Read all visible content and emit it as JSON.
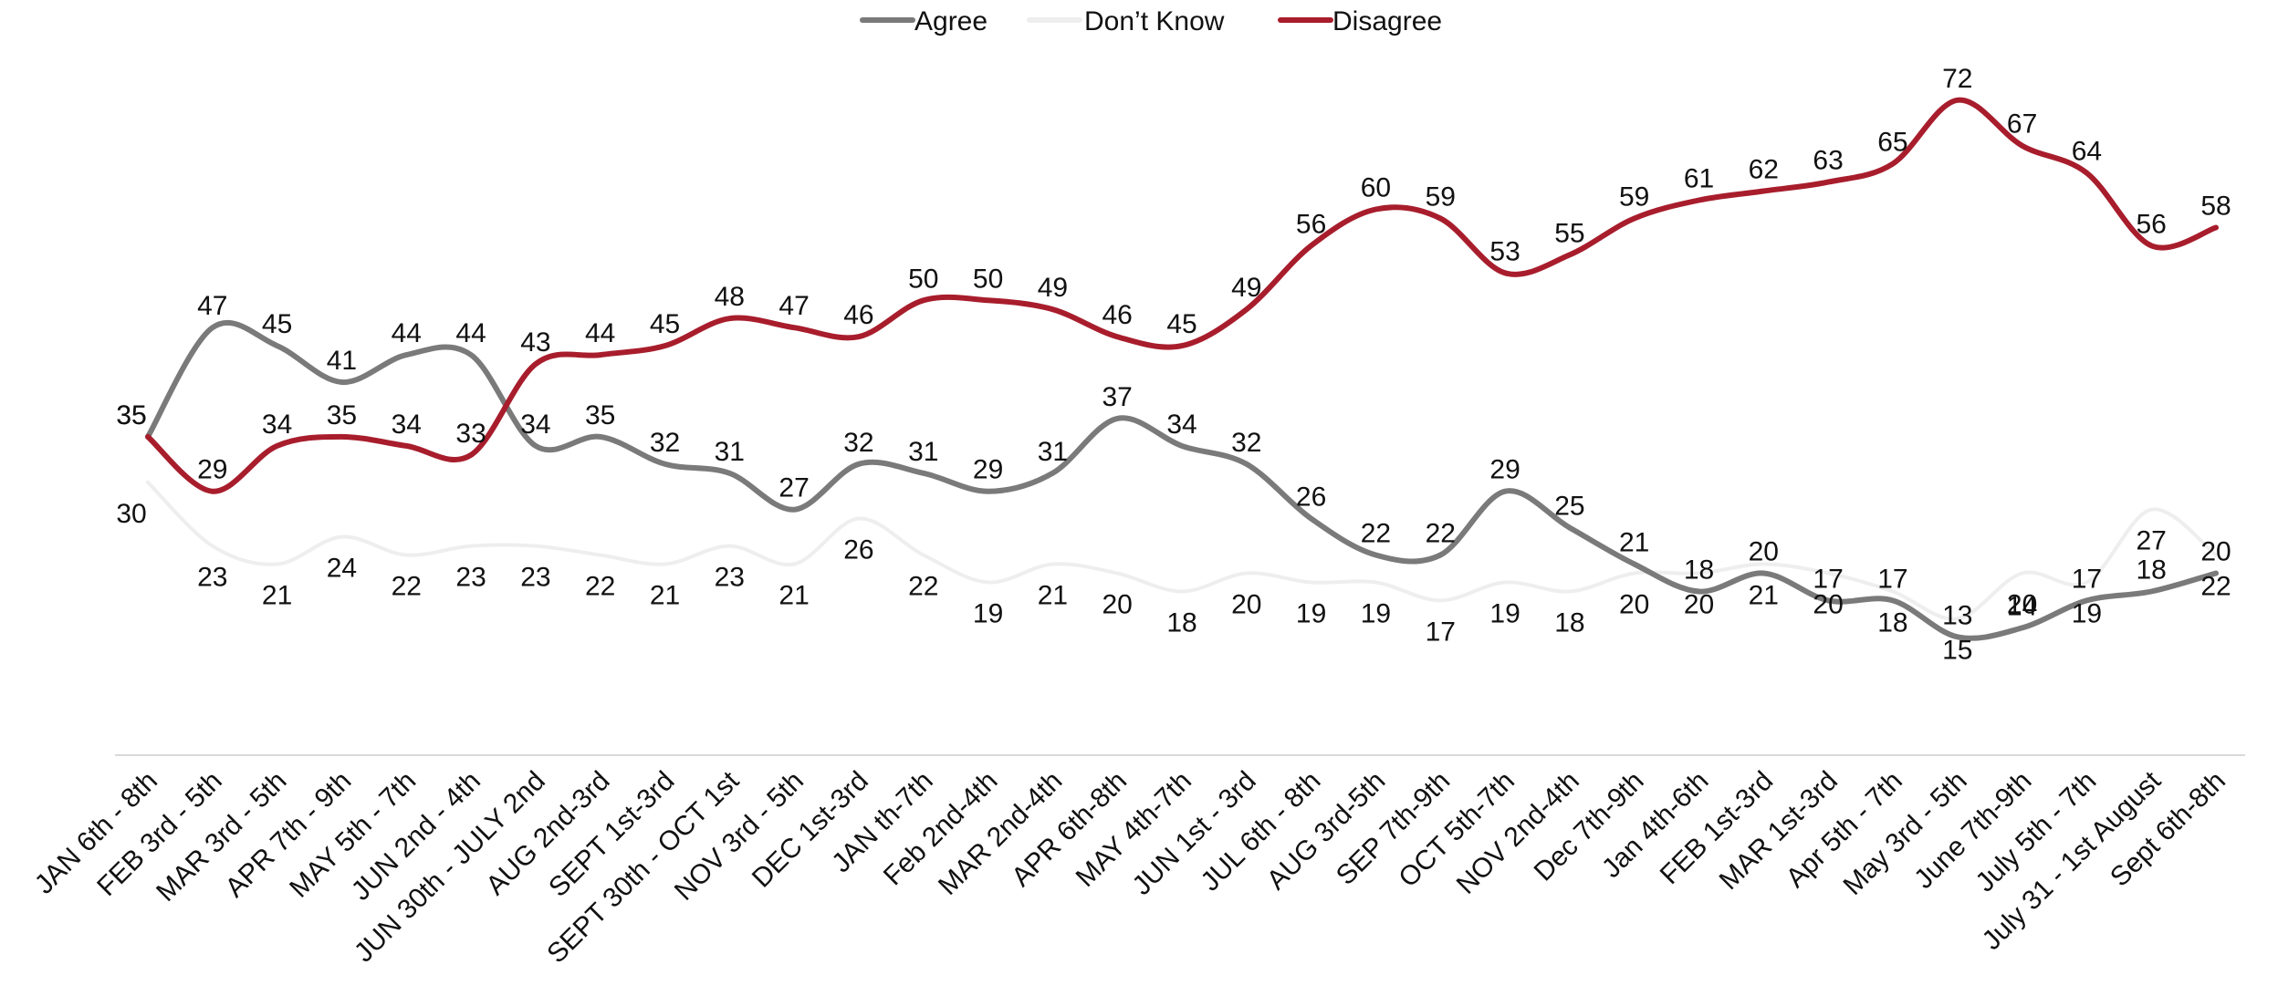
{
  "chart_data": {
    "type": "line",
    "title": "",
    "xlabel": "",
    "ylabel": "",
    "ylim": [
      0,
      80
    ],
    "grid": false,
    "legend": "top-center",
    "categories": [
      "JAN 6th - 8th",
      "FEB 3rd - 5th",
      "MAR 3rd - 5th",
      "APR 7th - 9th",
      "MAY 5th - 7th",
      "JUN 2nd - 4th",
      "JUN 30th - JULY 2nd",
      "AUG 2nd-3rd",
      "SEPT 1st-3rd",
      "SEPT 30th - OCT 1st",
      "NOV 3rd - 5th",
      "DEC 1st-3rd",
      "JAN th-7th",
      "Feb 2nd-4th",
      "MAR 2nd-4th",
      "APR 6th-8th",
      "MAY 4th-7th",
      "JUN 1st - 3rd",
      "JUL 6th - 8th",
      "AUG 3rd-5th",
      "SEP 7th-9th",
      "OCT 5th-7th",
      "NOV 2nd-4th",
      "Dec 7th-9th",
      "Jan 4th-6th",
      "FEB 1st-3rd",
      "MAR 1st-3rd",
      "Apr 5th - 7th",
      "May 3rd - 5th",
      "June 7th-9th",
      "July 5th - 7th",
      "July 31 - 1st August",
      "Sept 6th-8th"
    ],
    "series": [
      {
        "name": "Agree",
        "color": "#7a7a7a",
        "values": [
          35,
          47,
          45,
          41,
          44,
          44,
          34,
          35,
          32,
          31,
          27,
          32,
          31,
          29,
          31,
          37,
          34,
          32,
          26,
          22,
          22,
          29,
          25,
          21,
          18,
          20,
          17,
          17,
          13,
          14,
          17,
          18,
          20
        ]
      },
      {
        "name": "Don’t Know",
        "color": "#eeeeee",
        "values": [
          30,
          23,
          21,
          24,
          22,
          23,
          23,
          22,
          21,
          23,
          21,
          26,
          22,
          19,
          21,
          20,
          18,
          20,
          19,
          19,
          17,
          19,
          18,
          20,
          20,
          21,
          20,
          18,
          15,
          20,
          19,
          27,
          22
        ]
      },
      {
        "name": "Disagree",
        "color": "#a81d2c",
        "values": [
          35,
          29,
          34,
          35,
          34,
          33,
          43,
          44,
          45,
          48,
          47,
          46,
          50,
          50,
          49,
          46,
          45,
          49,
          56,
          60,
          59,
          53,
          55,
          59,
          61,
          62,
          63,
          65,
          72,
          67,
          64,
          56,
          58
        ]
      }
    ]
  }
}
